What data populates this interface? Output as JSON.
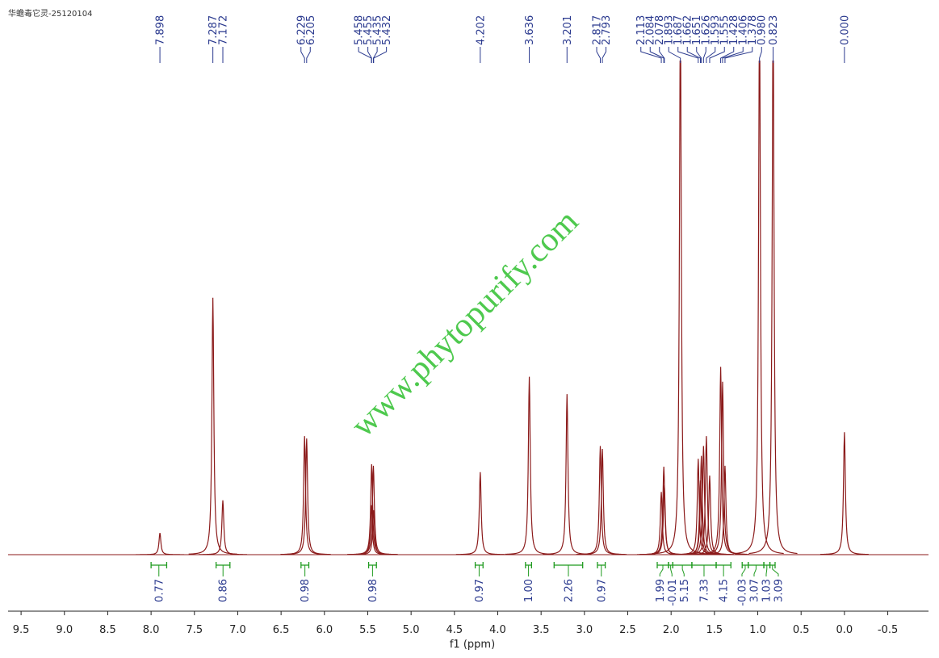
{
  "chart_data": {
    "type": "nmr",
    "sample_label": "华蟾毒它灵-25120104",
    "watermark": "www.phytopurify.com",
    "x_label": "f1 (ppm)",
    "xlim": [
      9.65,
      -0.97
    ],
    "ylim": [
      0,
      100
    ],
    "xticks": [
      9.5,
      {
        "value": 9,
        "label": "9.0"
      },
      8.5,
      {
        "value": 8,
        "label": "8.0"
      },
      7.5,
      {
        "value": 7,
        "label": "7.0"
      },
      6.5,
      {
        "value": 6,
        "label": "6.0"
      },
      5.5,
      {
        "value": 5,
        "label": "5.0"
      },
      4.5,
      {
        "value": 4,
        "label": "4.0"
      },
      3.5,
      {
        "value": 3,
        "label": "3.0"
      },
      2.5,
      {
        "value": 2,
        "label": "2.0"
      },
      1.5,
      {
        "value": 1,
        "label": "1.0"
      },
      0.5,
      {
        "value": 0,
        "label": "0.0"
      },
      -0.5
    ],
    "spectrum_color": "#8b1a1a",
    "peak_label_color": "#2b3a8f",
    "integral_color": "#1f9a1f",
    "peaks": {
      "x": [
        7.898,
        7.287,
        7.172,
        6.229,
        6.205,
        5.458,
        5.455,
        5.435,
        5.432,
        4.202,
        3.636,
        3.201,
        2.817,
        2.793,
        2.113,
        2.084,
        2.078,
        1.893,
        1.687,
        1.662,
        1.651,
        1.626,
        1.593,
        1.555,
        1.428,
        1.406,
        1.378,
        0.98,
        0.823,
        0
      ],
      "labels": [
        "7.898",
        "7.287",
        "7.172",
        "6.229",
        "6.205",
        "5.458",
        "5.455",
        "5.435",
        "5.432",
        "4.202",
        "3.636",
        "3.201",
        "2.817",
        "2.793",
        "2.113",
        "2.084",
        "2.078",
        "1.893",
        "1.687",
        "1.662",
        "1.651",
        "1.626",
        "1.593",
        "1.555",
        "1.428",
        "1.406",
        "1.378",
        "0.980",
        "0.823",
        "0.000"
      ],
      "values": [
        4.4,
        52,
        11,
        24,
        23.5,
        10,
        18.3,
        18,
        9,
        16.7,
        36,
        32.5,
        22,
        21.4,
        12.7,
        17.8,
        14,
        110,
        19.4,
        15,
        20,
        22,
        24,
        16,
        38,
        35,
        18,
        110,
        110,
        24.8
      ]
    },
    "integrals": {
      "ranges": [
        [
          8.0,
          7.82
        ],
        [
          7.25,
          7.09
        ],
        [
          6.27,
          6.18
        ],
        [
          5.49,
          5.4
        ],
        [
          4.26,
          4.17
        ],
        [
          3.68,
          3.61
        ],
        [
          3.35,
          3.02
        ],
        [
          2.85,
          2.76
        ],
        [
          2.16,
          2.03
        ],
        [
          2.03,
          1.98
        ],
        [
          1.98,
          1.76
        ],
        [
          1.76,
          1.48
        ],
        [
          1.48,
          1.31
        ],
        [
          1.18,
          1.11
        ],
        [
          1.11,
          0.93
        ],
        [
          0.93,
          0.86
        ],
        [
          0.86,
          0.8
        ]
      ],
      "values": [
        0.77,
        0.86,
        0.98,
        0.98,
        0.97,
        1,
        2.26,
        0.97,
        1.99,
        -0.01,
        5.15,
        7.33,
        4.15,
        -0.03,
        3.07,
        1.03,
        3.09
      ],
      "value_labels": [
        "0.77",
        "0.86",
        "0.98",
        "0.98",
        "0.97",
        "1.00",
        "2.26",
        "0.97",
        "1.99",
        "-0.01",
        "5.15",
        "7.33",
        "4.15",
        "-0.03",
        "3.07",
        "1.03",
        "3.09"
      ]
    }
  }
}
